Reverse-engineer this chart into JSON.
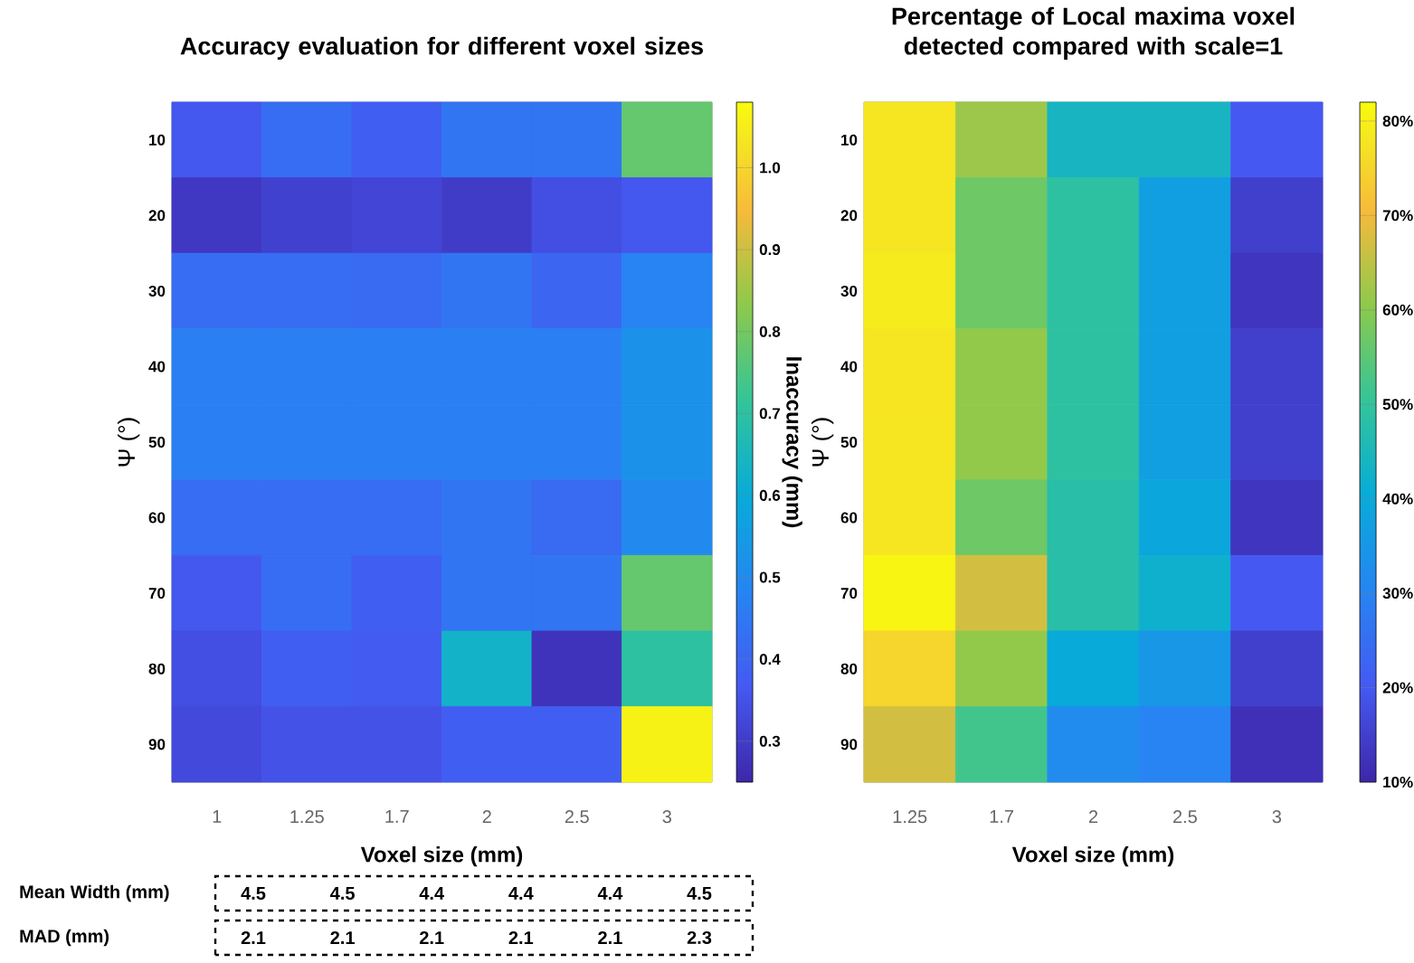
{
  "chart_data": [
    {
      "type": "heatmap",
      "title": "Accuracy evaluation for different voxel sizes",
      "xlabel": "Voxel size (mm)",
      "ylabel": "Ψ (°)",
      "clabel": "Inaccuracy (mm)",
      "categories": [
        "1",
        "1.25",
        "1.7",
        "2",
        "2.5",
        "3"
      ],
      "y_categories": [
        "10",
        "20",
        "30",
        "40",
        "50",
        "60",
        "70",
        "80",
        "90"
      ],
      "cells": [
        [
          0.36,
          0.42,
          0.38,
          0.44,
          0.44,
          0.78
        ],
        [
          0.29,
          0.31,
          0.32,
          0.3,
          0.34,
          0.36
        ],
        [
          0.42,
          0.42,
          0.41,
          0.44,
          0.4,
          0.48
        ],
        [
          0.47,
          0.47,
          0.47,
          0.47,
          0.47,
          0.52
        ],
        [
          0.47,
          0.47,
          0.47,
          0.47,
          0.47,
          0.52
        ],
        [
          0.42,
          0.42,
          0.42,
          0.44,
          0.41,
          0.5
        ],
        [
          0.36,
          0.42,
          0.38,
          0.44,
          0.44,
          0.78
        ],
        [
          0.34,
          0.38,
          0.37,
          0.63,
          0.28,
          0.7
        ],
        [
          0.33,
          0.35,
          0.35,
          0.38,
          0.38,
          1.06
        ]
      ],
      "clim": [
        0.25,
        1.08
      ],
      "cticks": [
        0.3,
        0.4,
        0.5,
        0.6,
        0.7,
        0.8,
        0.9,
        {
          "value": 1.0,
          "label": "1.0"
        }
      ],
      "annotations": [
        "Mean  Width  (mm)",
        "4.5",
        "4.5",
        "4.4",
        "4.4",
        "4.4",
        "4.5",
        "MAD (mm)",
        "2.1",
        "2.1",
        "2.1",
        "2.1",
        "2.1",
        "2.3"
      ]
    },
    {
      "type": "heatmap",
      "title": "Percentage of Local maxima voxel detected compared with scale=1",
      "xlabel": "Voxel size (mm)",
      "ylabel": "Ψ (°)",
      "categories": [
        "1.25",
        "1.7",
        "2",
        "2.5",
        "3"
      ],
      "y_categories": [
        "10",
        "20",
        "30",
        "40",
        "50",
        "60",
        "70",
        "80",
        "90"
      ],
      "cells": [
        [
          78,
          62,
          44,
          44,
          20
        ],
        [
          78,
          57,
          49,
          37,
          15
        ],
        [
          79,
          57,
          49,
          37,
          13
        ],
        [
          78,
          61,
          49,
          37,
          15
        ],
        [
          78,
          61,
          49,
          37,
          15
        ],
        [
          78,
          57,
          48,
          39,
          13
        ],
        [
          81,
          67,
          48,
          42,
          20
        ],
        [
          75,
          61,
          40,
          35,
          15
        ],
        [
          67,
          52,
          32,
          30,
          12
        ]
      ],
      "clim": [
        10,
        82
      ],
      "cticks": [
        {
          "value": 10,
          "label": "10%"
        },
        {
          "value": 20,
          "label": "20%"
        },
        {
          "value": 30,
          "label": "30%"
        },
        {
          "value": 40,
          "label": "40%"
        },
        {
          "value": 50,
          "label": "50%"
        },
        {
          "value": 60,
          "label": "60%"
        },
        {
          "value": 70,
          "label": "70%"
        },
        {
          "value": 80,
          "label": "80%"
        }
      ]
    }
  ]
}
